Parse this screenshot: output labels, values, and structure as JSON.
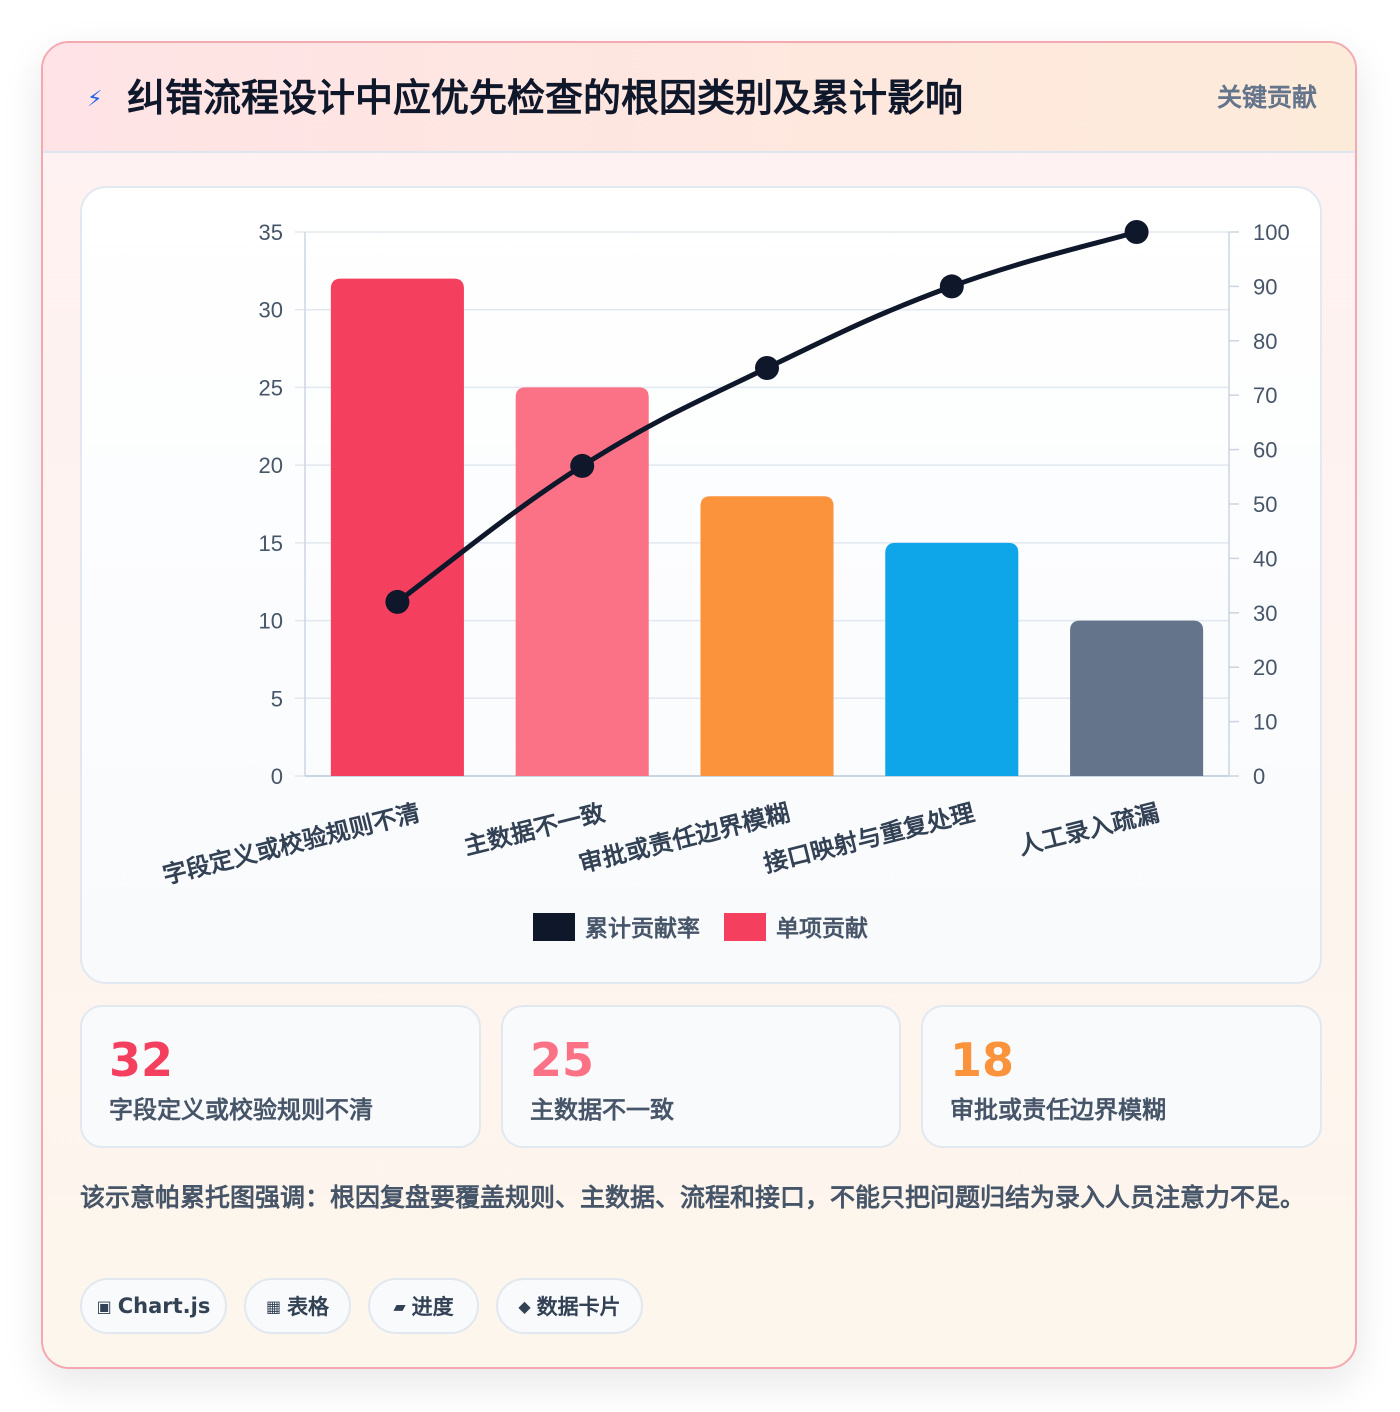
{
  "header": {
    "icon": "lightning-icon",
    "title": "纠错流程设计中应优先检查的根因类别及累计影响",
    "tag": "关键贡献"
  },
  "chart_data": {
    "type": "bar",
    "categories": [
      "字段定义或校验规则不清",
      "主数据不一致",
      "审批或责任边界模糊",
      "接口映射与重复处理",
      "人工录入疏漏"
    ],
    "series": [
      {
        "name": "单项贡献",
        "type": "bar",
        "axis": "left",
        "values": [
          32,
          25,
          18,
          15,
          10
        ],
        "colors": [
          "#f43f5e",
          "#fb7185",
          "#fb923c",
          "#0ea5e9",
          "#64748b"
        ]
      },
      {
        "name": "累计贡献率",
        "type": "line",
        "axis": "right",
        "values": [
          32,
          57,
          75,
          90,
          100
        ],
        "color": "#0f172a"
      }
    ],
    "ylim": [
      0,
      35
    ],
    "yticks": [
      0,
      5,
      10,
      15,
      20,
      25,
      30,
      35
    ],
    "y2lim": [
      0,
      100
    ],
    "y2ticks": [
      0,
      10,
      20,
      30,
      40,
      50,
      60,
      70,
      80,
      90,
      100
    ],
    "xlabel": "",
    "ylabel": "",
    "y2label": "",
    "grid": true,
    "legend_position": "bottom",
    "legend": [
      {
        "label": "累计贡献率",
        "color": "#0f172a"
      },
      {
        "label": "单项贡献",
        "color": "#f43f5e"
      }
    ]
  },
  "stats": [
    {
      "value": "32",
      "label": "字段定义或校验规则不清",
      "color": "#f43f5e"
    },
    {
      "value": "25",
      "label": "主数据不一致",
      "color": "#fb7185"
    },
    {
      "value": "18",
      "label": "审批或责任边界模糊",
      "color": "#fb923c"
    }
  ],
  "note": "该示意帕累托图强调：根因复盘要覆盖规则、主数据、流程和接口，不能只把问题归结为录入人员注意力不足。",
  "chips": [
    {
      "icon": "▣",
      "label": "Chart.js"
    },
    {
      "icon": "▦",
      "label": "表格"
    },
    {
      "icon": "▰",
      "label": "进度"
    },
    {
      "icon": "◆",
      "label": "数据卡片"
    }
  ]
}
